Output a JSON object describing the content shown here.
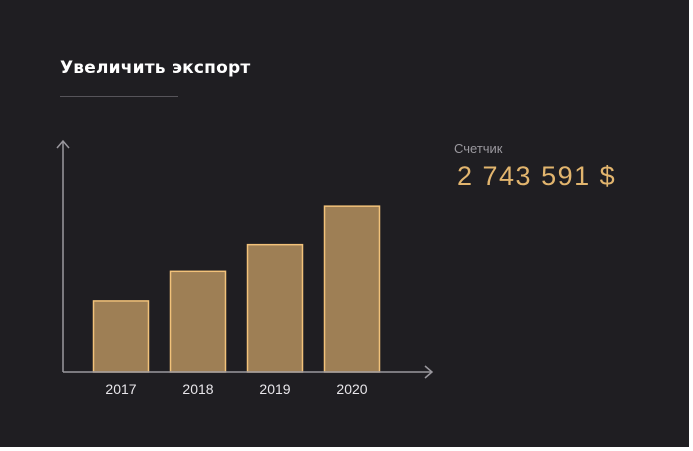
{
  "widget": {
    "title": "Увеличить экспорт",
    "counter_label": "Счетчик",
    "counter_value": "2 743 591 $"
  },
  "colors": {
    "background": "#1f1e22",
    "bar_fill": "#9e7f55",
    "bar_stroke": "#f2c27a",
    "counter": "#e2b56e",
    "axis": "#9a989e"
  },
  "chart_data": {
    "type": "bar",
    "categories": [
      "2017",
      "2018",
      "2019",
      "2020"
    ],
    "values": [
      24,
      34,
      43,
      56
    ],
    "ylim": [
      0,
      78
    ],
    "grid": false,
    "title": "",
    "xlabel": "",
    "ylabel": ""
  }
}
